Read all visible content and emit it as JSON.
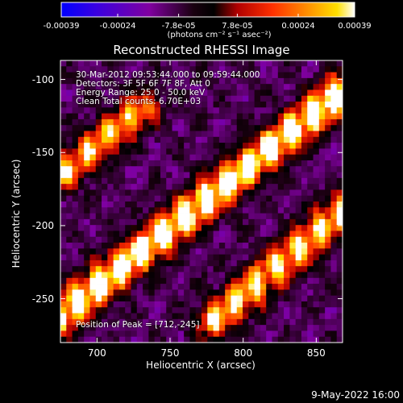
{
  "colorbar": {
    "ticks": [
      "-0.00039",
      "-0.00024",
      "-7.8e-05",
      "7.8e-05",
      "0.00024",
      "0.00039"
    ],
    "tick_values": [
      -0.00039,
      -0.00024,
      -7.8e-05,
      7.8e-05,
      0.00024,
      0.00039
    ],
    "range": [
      -0.00039,
      0.00039
    ],
    "unit_label": "(photons cm⁻² s⁻¹ asec⁻²)",
    "colors": [
      "#0000ff",
      "#5a00c8",
      "#8c0078",
      "#000000",
      "#a00000",
      "#ff2800",
      "#ff8c00",
      "#ffdc00",
      "#ffffff"
    ]
  },
  "title": "Reconstructed RHESSI Image",
  "info": {
    "line1": "30-Mar-2012 09:53:44.000 to 09:59:44.000",
    "line2": "Detectors: 3F 5F 6F 7F 8F, Att 0",
    "line3": "Energy Range: 25.0 - 50.0 keV",
    "line4": "Clean     Total counts: 6.70E+03"
  },
  "peak_text": "Position of Peak = [712,-245]",
  "footer_date": "9-May-2022 16:00",
  "chart_data": {
    "type": "heatmap",
    "title": "Reconstructed RHESSI Image",
    "xlabel": "Heliocentric X (arcsec)",
    "ylabel": "Heliocentric Y (arcsec)",
    "xlim": [
      675,
      868
    ],
    "ylim": [
      -280,
      -87
    ],
    "xticks": [
      "700",
      "750",
      "800",
      "850"
    ],
    "xtick_values": [
      700,
      750,
      800,
      850
    ],
    "yticks": [
      "-100",
      "-150",
      "-200",
      "-250"
    ],
    "ytick_values": [
      -100,
      -150,
      -200,
      -250
    ],
    "peak": [
      712,
      -245
    ],
    "bands": [
      {
        "x": [
          675,
          868
        ],
        "y": [
          -262,
          -108
        ],
        "amplitude": 0.95
      },
      {
        "x": [
          780,
          868
        ],
        "y": [
          -265,
          -190
        ],
        "amplitude": 0.75
      },
      {
        "x": [
          675,
          730
        ],
        "y": [
          -165,
          -120
        ],
        "amplitude": 0.65
      }
    ]
  }
}
